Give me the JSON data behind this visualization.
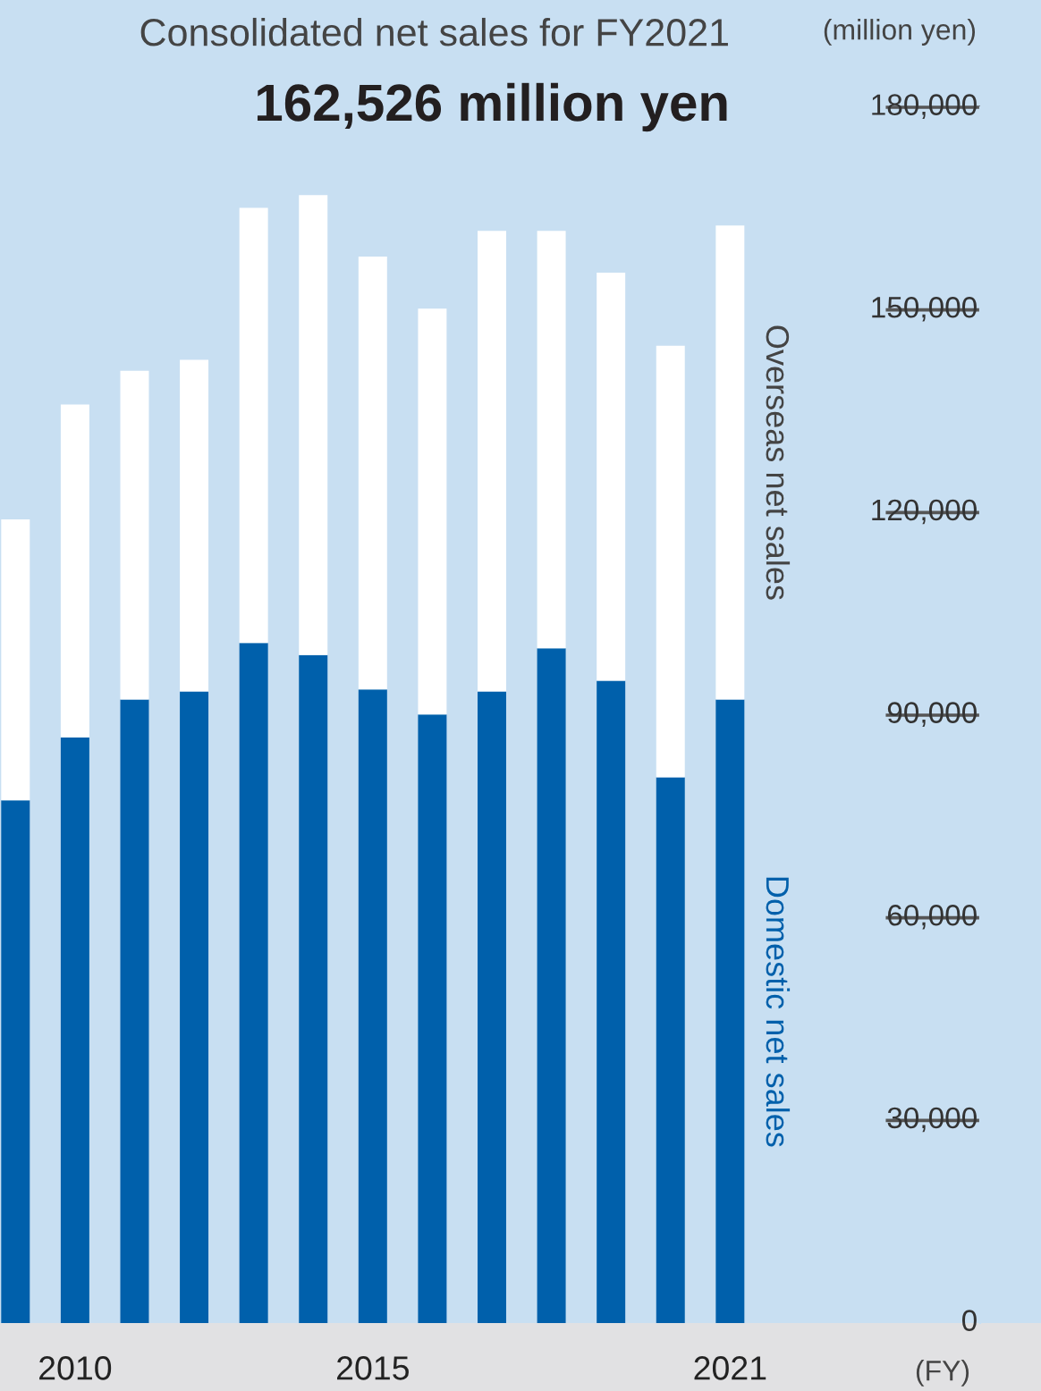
{
  "chart_data": {
    "type": "bar",
    "stacked": true,
    "title": "Consolidated net sales for FY2021",
    "subtitle": "162,526 million yen",
    "ylabel": "(million yen)",
    "xlabel": "(FY)",
    "categories": [
      null,
      "2010",
      null,
      null,
      null,
      null,
      "2015",
      null,
      null,
      null,
      null,
      null,
      "2021"
    ],
    "series": [
      {
        "name": "Domestic net sales",
        "color": "#0060ab",
        "values": [
          77400,
          86700,
          92300,
          93500,
          100700,
          98900,
          93800,
          90100,
          93500,
          99900,
          95100,
          80800,
          92300
        ]
      },
      {
        "name": "Overseas net sales",
        "color": "#ffffff",
        "values": [
          41600,
          49300,
          48700,
          49100,
          64400,
          68100,
          64100,
          60100,
          68200,
          61800,
          60400,
          63900,
          70200
        ]
      }
    ],
    "ylim": [
      0,
      180000
    ],
    "yticks": [
      0,
      {
        "value": 30000,
        "label": "30,000"
      },
      {
        "value": 60000,
        "label": "60,000"
      },
      {
        "value": 90000,
        "label": "90,000"
      },
      {
        "value": 120000,
        "label": "120,000"
      },
      {
        "value": 150000,
        "label": "150,000"
      },
      {
        "value": 180000,
        "label": "180,000"
      }
    ],
    "grid": false
  }
}
